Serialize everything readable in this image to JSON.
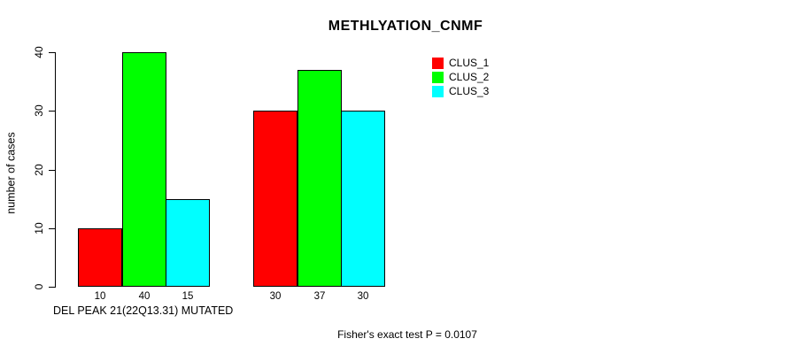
{
  "chart_data": {
    "type": "bar",
    "title": "METHLYATION_CNMF",
    "ylabel": "number of cases",
    "xlabel": "DEL PEAK 21(22Q13.31) MUTATED",
    "ylim": [
      0,
      40
    ],
    "yticks": [
      0,
      10,
      20,
      30,
      40
    ],
    "grid": false,
    "legend_position": "top-right",
    "num_groups": 2,
    "series": [
      {
        "name": "CLUS_1",
        "color": "#ff0000",
        "values": [
          10,
          30
        ]
      },
      {
        "name": "CLUS_2",
        "color": "#00ff00",
        "values": [
          40,
          37
        ]
      },
      {
        "name": "CLUS_3",
        "color": "#00ffff",
        "values": [
          15,
          30
        ]
      }
    ],
    "bar_value_labels_shown": true,
    "annotation": "Fisher's exact test P = 0.0107",
    "background_color": "#ffffff",
    "text_color": "#000000"
  }
}
